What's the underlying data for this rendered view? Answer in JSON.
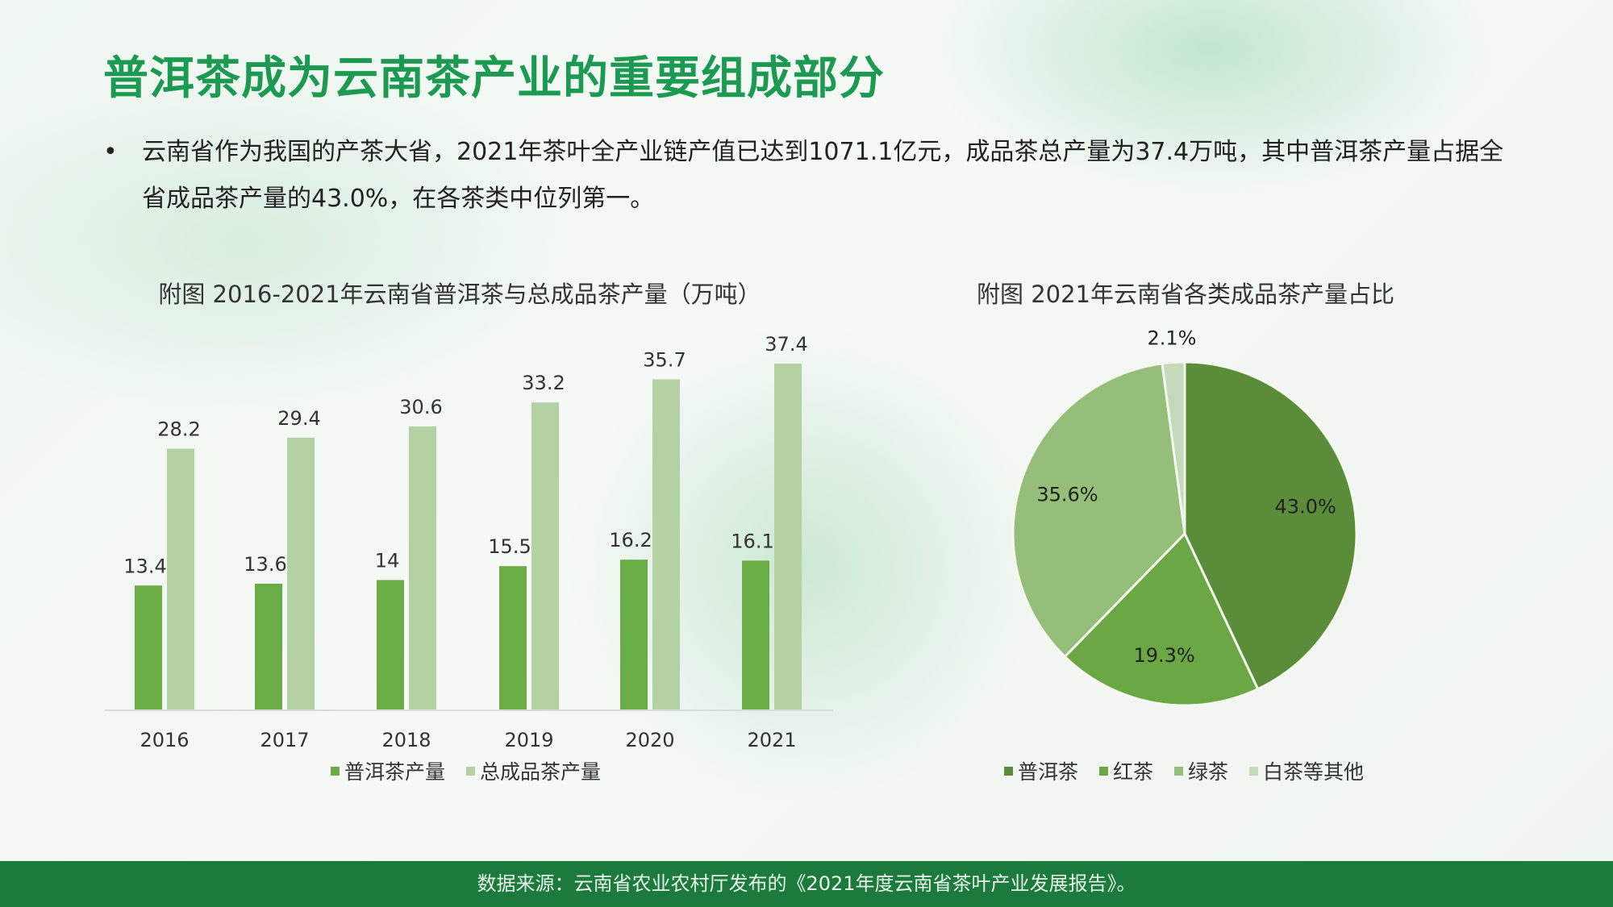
{
  "title": "普洱茶成为云南茶产业的重要组成部分",
  "bullet": {
    "marker": "•",
    "text": "云南省作为我国的产茶大省，2021年茶叶全产业链产值已达到1071.1亿元，成品茶总产量为37.4万吨，其中普洱茶产量占据全省成品茶产量的43.0%，在各茶类中位列第一。"
  },
  "footer": "数据来源：云南省农业农村厅发布的《2021年度云南省茶叶产业发展报告》。",
  "chart_data": [
    {
      "type": "bar",
      "title": "附图 2016-2021年云南省普洱茶与总成品茶产量（万吨）",
      "categories": [
        "2016",
        "2017",
        "2018",
        "2019",
        "2020",
        "2021"
      ],
      "series": [
        {
          "name": "普洱茶产量",
          "values": [
            13.4,
            13.6,
            14,
            15.5,
            16.2,
            16.1
          ],
          "labels": [
            "13.4",
            "13.6",
            "14",
            "15.5",
            "16.2",
            "16.1"
          ],
          "color": "#6aac45"
        },
        {
          "name": "总成品茶产量",
          "values": [
            28.2,
            29.4,
            30.6,
            33.2,
            35.7,
            37.4
          ],
          "labels": [
            "28.2",
            "29.4",
            "30.6",
            "33.2",
            "35.7",
            "37.4"
          ],
          "color": "#b3d1a3"
        }
      ],
      "ylim": [
        0,
        37.4
      ],
      "grid": false,
      "legend": "bottom"
    },
    {
      "type": "pie",
      "title": "附图 2021年云南省各类成品茶产量占比",
      "categories": [
        "普洱茶",
        "红茶",
        "绿茶",
        "白茶等其他"
      ],
      "values": [
        43.0,
        19.3,
        35.6,
        2.1
      ],
      "labels": [
        "43.0%",
        "19.3%",
        "35.6%",
        "2.1%"
      ],
      "colors": [
        "#5b8c3a",
        "#6ba845",
        "#94be7a",
        "#c5dabb"
      ],
      "legend": "bottom"
    }
  ]
}
